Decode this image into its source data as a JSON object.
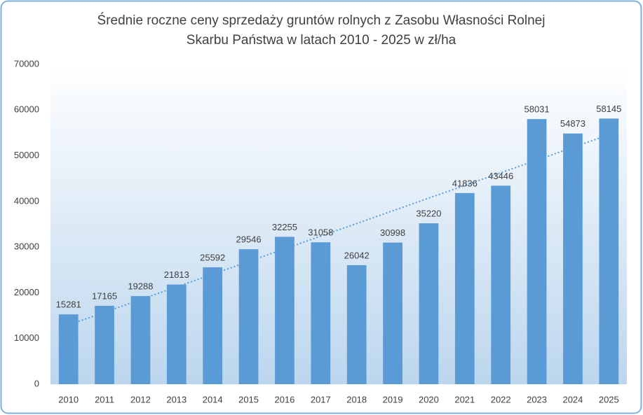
{
  "chart_data": {
    "type": "bar",
    "title": [
      "Średnie roczne ceny sprzedaży gruntów rolnych z Zasobu Własności Rolnej",
      "Skarbu Państwa w latach 2010 - 2025 w zł/ha"
    ],
    "categories": [
      "2010",
      "2011",
      "2012",
      "2013",
      "2014",
      "2015",
      "2016",
      "2017",
      "2018",
      "2019",
      "2020",
      "2021",
      "2022",
      "2023",
      "2024",
      "2025"
    ],
    "values": [
      15281,
      17165,
      19288,
      21813,
      25592,
      29546,
      32255,
      31058,
      26042,
      30998,
      35220,
      41836,
      43446,
      58031,
      54873,
      58145
    ],
    "color": "#5b9bd5",
    "ylim": [
      0,
      70000
    ],
    "yticks": [
      0,
      10000,
      20000,
      30000,
      40000,
      50000,
      60000,
      70000
    ],
    "grid": false,
    "trendline": true
  }
}
